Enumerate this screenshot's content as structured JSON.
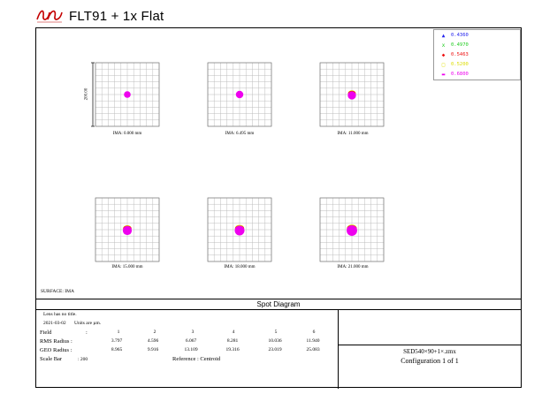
{
  "header": {
    "title": "FLT91 + 1x Flat",
    "logo_icon": "brand-logo-icon"
  },
  "legend": {
    "items": [
      {
        "label": "0.4360",
        "color": "#2222ee",
        "symbol": "▲"
      },
      {
        "label": "0.4970",
        "color": "#22cc22",
        "symbol": "x"
      },
      {
        "label": "0.5463",
        "color": "#ee1111",
        "symbol": "◆"
      },
      {
        "label": "0.5200",
        "color": "#dddd00",
        "symbol": "□"
      },
      {
        "label": "0.6800",
        "color": "#ee00ee",
        "symbol": "▬"
      }
    ]
  },
  "spots": [
    {
      "ima": "IMA: 0.000 mm"
    },
    {
      "ima": "IMA: 6.495 mm"
    },
    {
      "ima": "IMA: 11.000 mm"
    },
    {
      "ima": "IMA: 15.000 mm"
    },
    {
      "ima": "IMA: 18.000 mm"
    },
    {
      "ima": "IMA: 21.000 mm"
    }
  ],
  "scale_bar_label": "200.00",
  "surface": "SURFACE: IMA",
  "panel": {
    "title": "Spot Diagram",
    "lens": "Lens has no title.",
    "date": "2021-03-02",
    "units": "Units are µm.",
    "field_label": "Field",
    "field_colon": ":",
    "fields": [
      "1",
      "2",
      "3",
      "4",
      "5",
      "6"
    ],
    "rms_label": "RMS Radius :",
    "rms": [
      "3.797",
      "4.596",
      "6.067",
      "8.281",
      "10.036",
      "11.940"
    ],
    "geo_label": "GEO Radius :",
    "geo": [
      "8.965",
      "9.916",
      "13.109",
      "19.316",
      "23.019",
      "25.083"
    ],
    "scale_label": "Scale Bar",
    "scale_value": ": 200",
    "reference": "Reference  :  Centroid",
    "file": "SED540×90+1×.zmx",
    "configuration": "Configuration 1 of 1"
  }
}
